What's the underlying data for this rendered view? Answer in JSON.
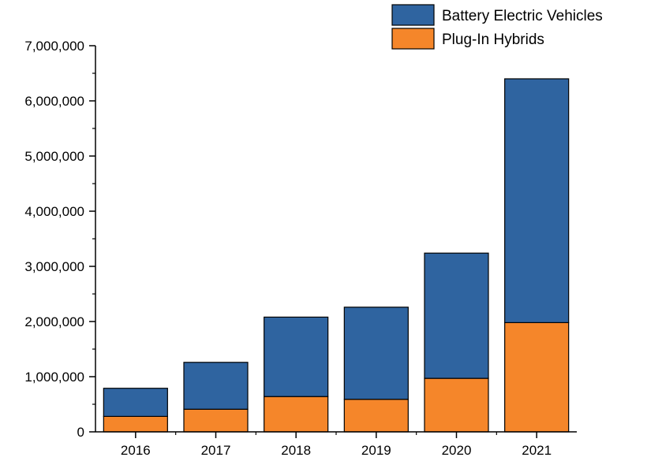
{
  "chart_data": {
    "type": "bar",
    "stacked": true,
    "categories": [
      "2016",
      "2017",
      "2018",
      "2019",
      "2020",
      "2021"
    ],
    "series": [
      {
        "name": "Plug-In Hybrids",
        "color": "#f5862a",
        "values": [
          280000,
          410000,
          640000,
          590000,
          970000,
          1980000
        ]
      },
      {
        "name": "Battery Electric Vehicles",
        "color": "#2f64a0",
        "values": [
          510000,
          850000,
          1440000,
          1670000,
          2270000,
          4420000
        ]
      }
    ],
    "ylim": [
      0,
      7000000
    ],
    "yticks": [
      0,
      1000000,
      2000000,
      3000000,
      4000000,
      5000000,
      6000000,
      7000000
    ],
    "ytick_labels": [
      "0",
      "1,000,000",
      "2,000,000",
      "3,000,000",
      "4,000,000",
      "5,000,000",
      "6,000,000",
      "7,000,000"
    ],
    "legend": {
      "position": "top-right",
      "entries": [
        "Battery Electric Vehicles",
        "Plug-In Hybrids"
      ]
    },
    "grid": false,
    "title": "",
    "xlabel": "",
    "ylabel": ""
  }
}
